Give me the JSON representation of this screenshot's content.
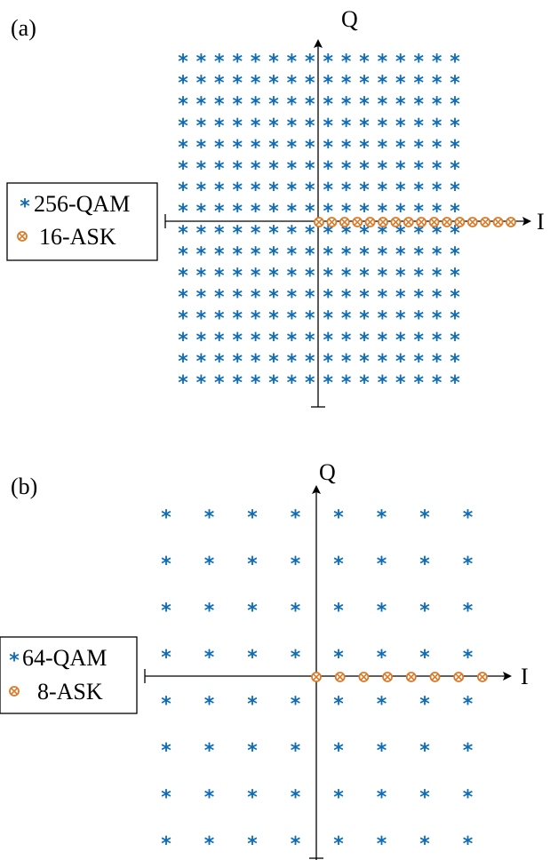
{
  "colors": {
    "qam": "#0f6db7",
    "ask": "#d97b2a"
  },
  "chart_data": [
    {
      "type": "scatter",
      "panel_label": "(a)",
      "xlabel": "I",
      "ylabel": "Q",
      "legend_placement": "left",
      "series": [
        {
          "name": "256-QAM",
          "marker": "asterisk",
          "color": "#0f6db7",
          "points": "16x16 grid: I,Q in {-15,-13,-11,-9,-7,-5,-3,-1,1,3,5,7,9,11,13,15}"
        },
        {
          "name": "16-ASK",
          "marker": "circled-x",
          "color": "#d97b2a",
          "x": [
            0,
            1,
            2,
            3,
            4,
            5,
            6,
            7,
            8,
            9,
            10,
            11,
            12,
            13,
            14,
            15
          ],
          "y": [
            0,
            0,
            0,
            0,
            0,
            0,
            0,
            0,
            0,
            0,
            0,
            0,
            0,
            0,
            0,
            0
          ]
        }
      ]
    },
    {
      "type": "scatter",
      "panel_label": "(b)",
      "xlabel": "I",
      "ylabel": "Q",
      "legend_placement": "left",
      "series": [
        {
          "name": "64-QAM",
          "marker": "asterisk",
          "color": "#0f6db7",
          "points": "8x8 grid: I,Q in {-7,-5,-3,-1,1,3,5,7}"
        },
        {
          "name": "8-ASK",
          "marker": "circled-x",
          "color": "#d97b2a",
          "x": [
            0,
            1,
            2,
            3,
            4,
            5,
            6,
            7
          ],
          "y": [
            0,
            0,
            0,
            0,
            0,
            0,
            0,
            0
          ]
        }
      ]
    }
  ]
}
